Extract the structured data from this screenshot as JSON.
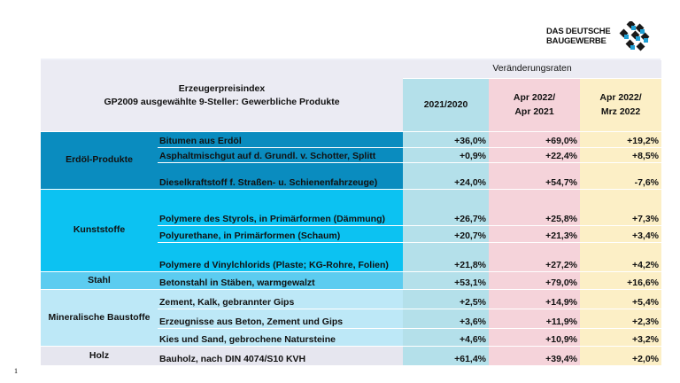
{
  "logo": {
    "line1": "DAS DEUTSCHE",
    "line2": "BAUGEWERBE"
  },
  "header": {
    "title": "Erzeugerpreisindex",
    "subtitle": "GP2009 ausgewählte 9-Steller: Gewerbliche Produkte",
    "group": "Veränderungsraten",
    "columns": [
      {
        "l1": "2021/2020",
        "l2": ""
      },
      {
        "l1": "Apr 2022/",
        "l2": "Apr 2021"
      },
      {
        "l1": "Apr 2022/",
        "l2": "Mrz 2022"
      }
    ]
  },
  "categories": [
    {
      "name": "Erdöl-Produkte",
      "color": "#0a8cbf",
      "rows": [
        {
          "product": "Bitumen aus Erdöl",
          "v": [
            "+36,0%",
            "+69,0%",
            "+19,2%"
          ]
        },
        {
          "product": "Asphaltmischgut auf d. Grundl. v. Schotter, Splitt",
          "v": [
            "+0,9%",
            "+22,4%",
            "+8,5%"
          ]
        },
        {
          "product": "Dieselkraftstoff f. Straßen- u. Schienenfahrzeuge)",
          "v": [
            "+24,0%",
            "+54,7%",
            "-7,6%"
          ]
        }
      ]
    },
    {
      "name": "Kunststoffe",
      "color": "#0cc2f2",
      "rows": [
        {
          "product": "Polymere des Styrols,  in Primärformen (Dämmung)",
          "v": [
            "+26,7%",
            "+25,8%",
            "+7,3%"
          ]
        },
        {
          "product": "Polyurethane, in Primärformen (Schaum)",
          "v": [
            "+20,7%",
            "+21,3%",
            "+3,4%"
          ]
        },
        {
          "product": "Polymere d Vinylchlorids (Plaste; KG-Rohre, Folien)",
          "v": [
            "+21,8%",
            "+27,2%",
            "+4,2%"
          ]
        }
      ]
    },
    {
      "name": "Stahl",
      "color": "#5cccf0",
      "rows": [
        {
          "product": "Betonstahl in Stäben, warmgewalzt",
          "v": [
            "+53,1%",
            "+79,0%",
            "+16,6%"
          ]
        }
      ]
    },
    {
      "name": "Mineralische Baustoffe",
      "color": "#bde8f7",
      "rows": [
        {
          "product": "Zement, Kalk, gebrannter Gips",
          "v": [
            "+2,5%",
            "+14,9%",
            "+5,4%"
          ]
        },
        {
          "product": "Erzeugnisse aus Beton, Zement und Gips",
          "v": [
            "+3,6%",
            "+11,9%",
            "+2,3%"
          ]
        },
        {
          "product": "Kies und Sand, gebrochene Natursteine",
          "v": [
            "+4,6%",
            "+10,9%",
            "+3,2%"
          ]
        }
      ]
    },
    {
      "name": "Holz",
      "color": "#e6e6ef",
      "rows": [
        {
          "product": "Bauholz, nach DIN 4074/S10 KVH",
          "v": [
            "+61,4%",
            "+39,4%",
            "+2,0%"
          ]
        }
      ]
    }
  ],
  "page_number": "1"
}
